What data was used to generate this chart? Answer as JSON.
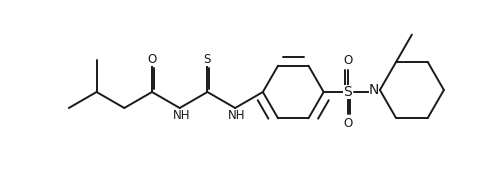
{
  "bg_color": "#ffffff",
  "line_color": "#1a1a1a",
  "line_width": 1.4,
  "font_size": 8.5,
  "figsize": [
    4.92,
    1.84
  ],
  "dpi": 100,
  "xlim": [
    0,
    4.92
  ],
  "ylim": [
    0,
    1.84
  ]
}
